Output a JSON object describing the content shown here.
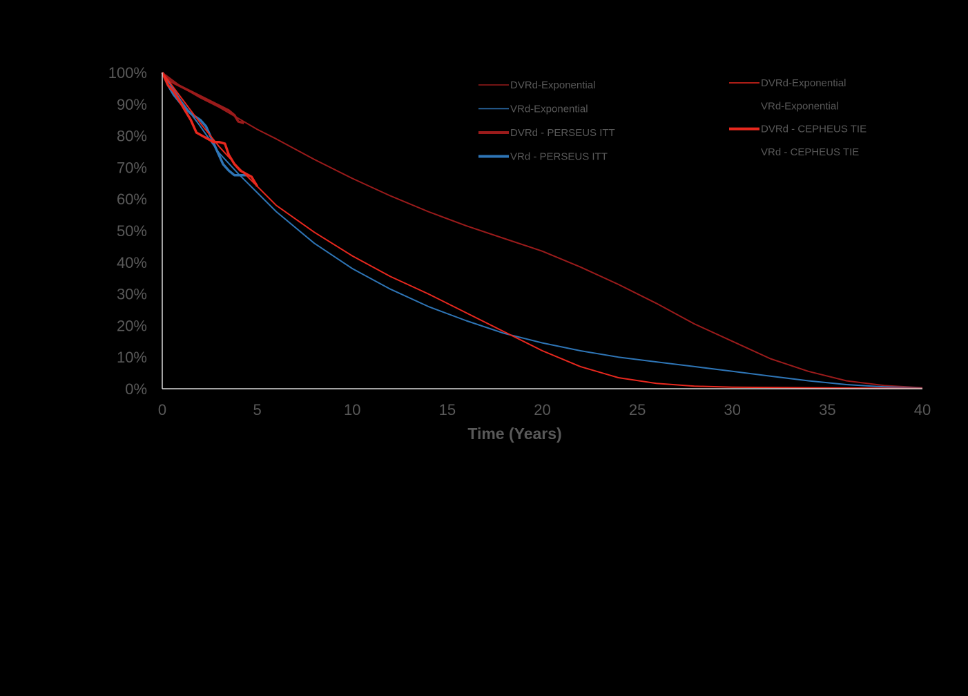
{
  "chart_data": {
    "type": "line",
    "xlabel": "Time (Years)",
    "ylabel": "",
    "xlim": [
      0,
      40
    ],
    "ylim": [
      0,
      100
    ],
    "x_ticks": [
      "0",
      "5",
      "10",
      "15",
      "20",
      "25",
      "30",
      "35",
      "40"
    ],
    "y_ticks": [
      "0%",
      "10%",
      "20%",
      "30%",
      "40%",
      "50%",
      "60%",
      "70%",
      "80%",
      "90%",
      "100%"
    ],
    "grid": false,
    "legend_placement": "top-right, two columns",
    "series": [
      {
        "name": "DVRd-Exponential",
        "color": "#9B1B1B",
        "stroke": "thin",
        "x": [
          0,
          1,
          2,
          3,
          4,
          5,
          6,
          8,
          10,
          12,
          14,
          16,
          18,
          20,
          22,
          24,
          26,
          28,
          30,
          32,
          34,
          36,
          38,
          40
        ],
        "y": [
          100,
          95.5,
          92,
          89,
          85.5,
          82,
          79,
          72.5,
          66.5,
          61,
          56,
          51.5,
          47.5,
          43.5,
          38.5,
          33,
          27,
          20.5,
          15,
          9.5,
          5.5,
          2.5,
          1,
          0.3
        ]
      },
      {
        "name": "VRd-Exponential",
        "color": "#2E75B6",
        "stroke": "thin",
        "x": [
          0,
          1,
          2,
          3,
          4,
          5,
          6,
          8,
          10,
          12,
          14,
          16,
          18,
          20,
          22,
          24,
          26,
          28,
          30,
          32,
          34,
          36,
          38,
          40
        ],
        "y": [
          100,
          91,
          83,
          74.5,
          68,
          62,
          56,
          46,
          38,
          31.5,
          26,
          21.5,
          17.5,
          14.5,
          12,
          10,
          8.5,
          7,
          5.5,
          4,
          2.5,
          1.3,
          0.6,
          0.2
        ]
      },
      {
        "name": "DVRd - PERSEUS ITT",
        "color": "#9B1B1B",
        "stroke": "thick",
        "x": [
          0,
          0.2,
          0.5,
          1,
          1.5,
          2,
          2.5,
          3,
          3.5,
          3.8,
          4,
          4.3
        ],
        "y": [
          100,
          98.5,
          97,
          95.5,
          94,
          92.5,
          91,
          89.5,
          88,
          86.5,
          84.5,
          84
        ]
      },
      {
        "name": "VRd - PERSEUS ITT",
        "color": "#2E75B6",
        "stroke": "thick",
        "x": [
          0,
          0.3,
          0.6,
          1,
          1.5,
          2,
          2.3,
          2.6,
          2.9,
          3.2,
          3.5,
          3.8,
          4.2,
          4.5
        ],
        "y": [
          100,
          96,
          93,
          90,
          87,
          85,
          83,
          79,
          75,
          71,
          69,
          67.5,
          67.5,
          67.5
        ]
      },
      {
        "name": "DVRd-Exponential",
        "color": "#E8281E",
        "stroke": "thin",
        "x": [
          0,
          1,
          2,
          3,
          4,
          5,
          6,
          8,
          10,
          12,
          14,
          16,
          18,
          20,
          22,
          24,
          26,
          28,
          30,
          34,
          40
        ],
        "y": [
          100,
          92,
          84,
          76.5,
          70,
          64,
          58,
          49.5,
          42,
          35.5,
          30,
          24,
          18,
          12,
          7,
          3.5,
          1.7,
          0.8,
          0.5,
          0.3,
          0.1
        ]
      },
      {
        "name": "VRd-Exponential",
        "color": "#000000",
        "stroke": "thin",
        "x": [],
        "y": []
      },
      {
        "name": "DVRd - CEPHEUS TIE",
        "color": "#E8281E",
        "stroke": "thick",
        "x": [
          0,
          0.3,
          0.6,
          0.9,
          1.2,
          1.5,
          1.8,
          2.1,
          2.4,
          2.7,
          3.0,
          3.3,
          3.5,
          3.8,
          4.1,
          4.4,
          4.7,
          5.0
        ],
        "y": [
          100,
          96,
          94,
          91,
          88,
          85,
          81,
          80,
          79,
          78,
          78,
          77.5,
          74,
          71,
          69,
          68,
          67,
          64
        ]
      },
      {
        "name": "VRd - CEPHEUS TIE",
        "color": "#000000",
        "stroke": "thick",
        "x": [],
        "y": []
      }
    ]
  },
  "legend": {
    "left": [
      {
        "label": "DVRd-Exponential",
        "color": "#9B1B1B",
        "thick": false
      },
      {
        "label": "VRd-Exponential",
        "color": "#2E75B6",
        "thick": false
      },
      {
        "label": "DVRd - PERSEUS ITT",
        "color": "#9B1B1B",
        "thick": true
      },
      {
        "label": "VRd - PERSEUS ITT",
        "color": "#2E75B6",
        "thick": true
      }
    ],
    "right": [
      {
        "label": "DVRd-Exponential",
        "color": "#E8281E",
        "thick": false
      },
      {
        "label": "VRd-Exponential",
        "color": "#000000",
        "thick": false
      },
      {
        "label": "DVRd - CEPHEUS TIE",
        "color": "#E8281E",
        "thick": true
      },
      {
        "label": "VRd - CEPHEUS TIE",
        "color": "#000000",
        "thick": true
      }
    ]
  },
  "colors": {
    "background": "#000000",
    "axis": "#D9D9D9",
    "text": "#595959"
  }
}
